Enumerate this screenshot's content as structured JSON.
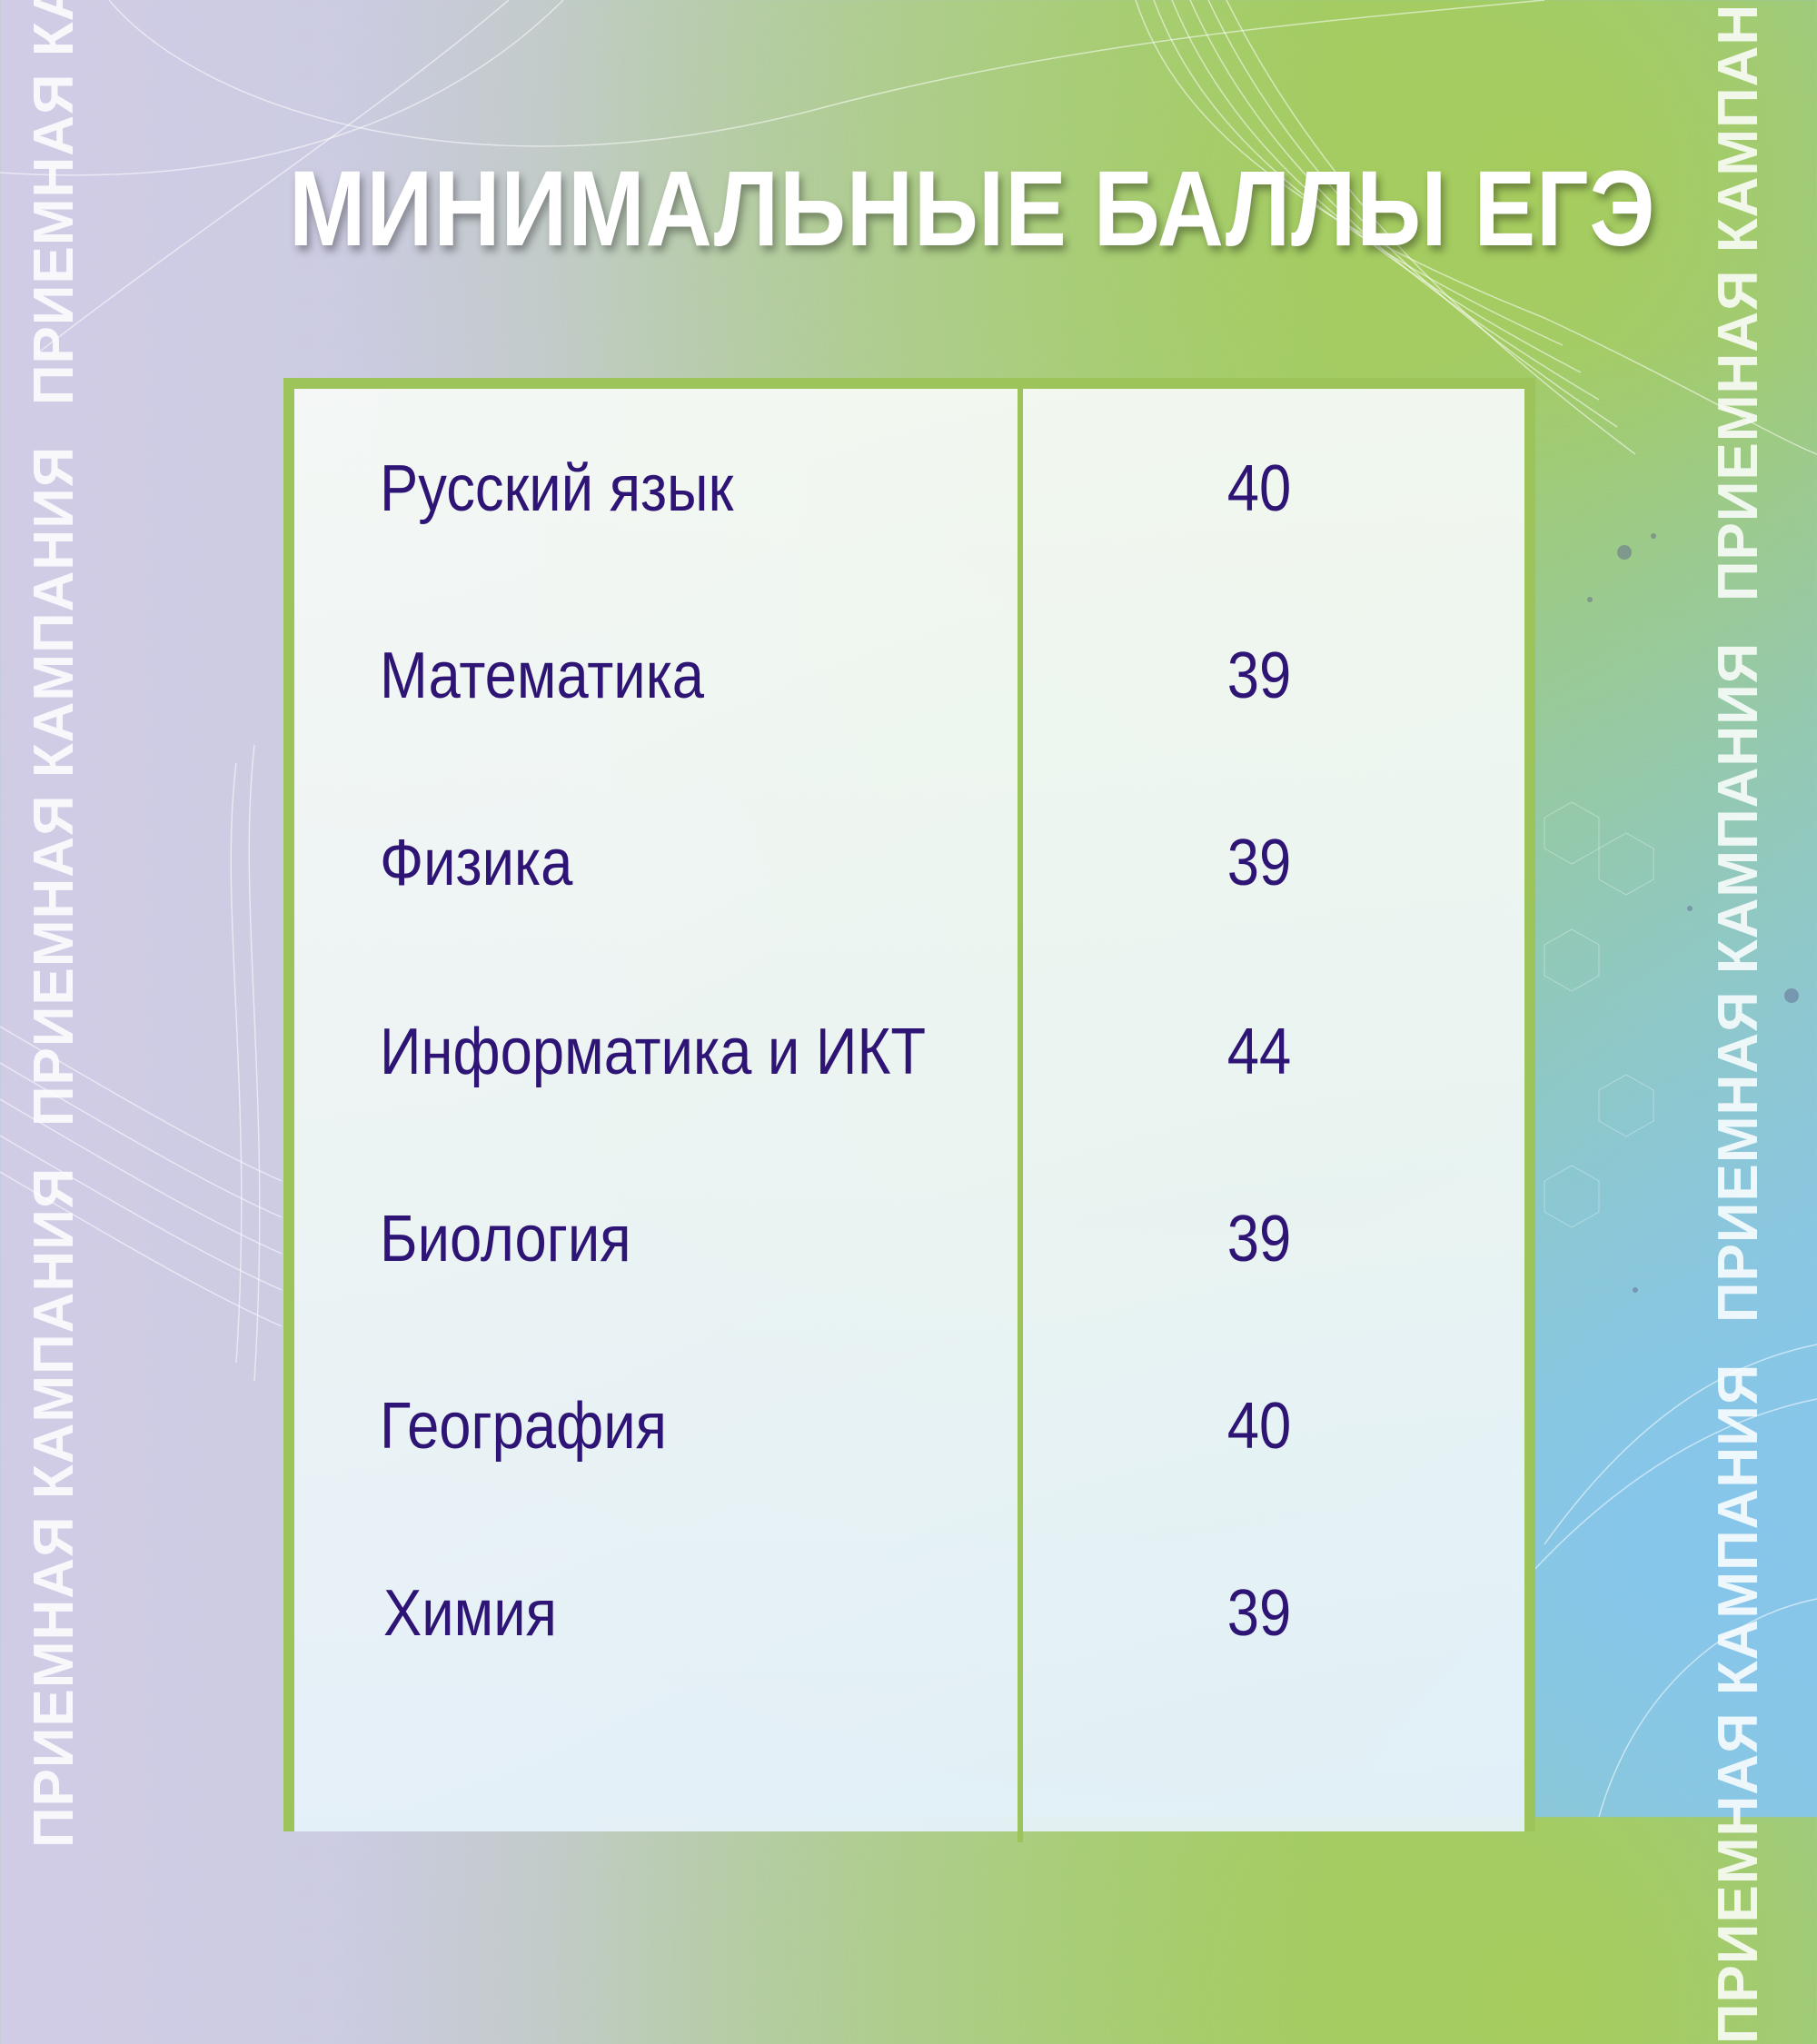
{
  "page": {
    "title": "МИНИМАЛЬНЫЕ БАЛЛЫ ЕГЭ"
  },
  "side_text": {
    "left_1": "ПРИЕМНАЯ КАМПАНИЯ",
    "left_2": "ПРИЕМНАЯ КАМПАНИЯ",
    "left_3": "ПРИЕМНАЯ КАМПАНИЯ",
    "right_1": "ПРИЕМНАЯ КАМПАНИЯ",
    "right_2": "ПРИЕМНАЯ КАМПАНИЯ",
    "right_3": "ПРИЕМНАЯ КАМПАНИЯ"
  },
  "table": {
    "rows": [
      {
        "subject": "Русский язык",
        "score": "40"
      },
      {
        "subject": "Математика",
        "score": "39"
      },
      {
        "subject": "Физика",
        "score": "39"
      },
      {
        "subject": "Информатика и ИКТ",
        "score": "44"
      },
      {
        "subject": "Биология",
        "score": "39"
      },
      {
        "subject": "География",
        "score": "40"
      },
      {
        "subject": "Химия",
        "score": "39"
      }
    ]
  },
  "colors": {
    "accent_green": "#9dc45a",
    "text_purple": "#2e1475",
    "title_white": "#ffffff"
  }
}
